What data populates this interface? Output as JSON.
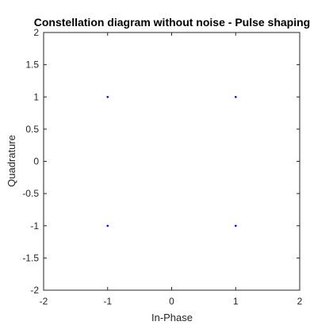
{
  "chart_data": {
    "type": "scatter",
    "title": "Constellation diagram without noise - Pulse shaping",
    "xlabel": "In-Phase",
    "ylabel": "Quadrature",
    "xlim": [
      -2,
      2
    ],
    "ylim": [
      -2,
      2
    ],
    "xticks": [
      "-2",
      "-1",
      "0",
      "1",
      "2"
    ],
    "yticks": [
      "2",
      "1.5",
      "1",
      "0.5",
      "0",
      "-0.5",
      "-1",
      "-1.5",
      "-2"
    ],
    "grid": false,
    "series": [
      {
        "color": "#0000ff",
        "points": [
          {
            "x": -1,
            "y": 1
          },
          {
            "x": 1,
            "y": 1
          },
          {
            "x": -1,
            "y": -1
          },
          {
            "x": 1,
            "y": -1
          }
        ]
      }
    ]
  }
}
